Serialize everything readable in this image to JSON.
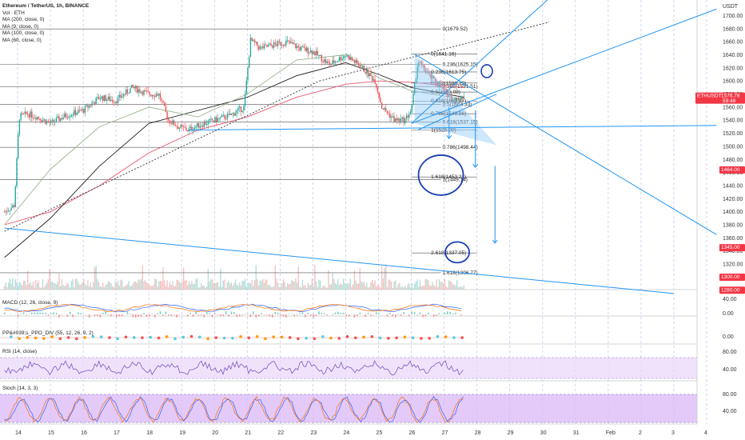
{
  "header": {
    "title": "Ethereum / TetherUS, 1h, BINANCE",
    "indicators": [
      "Vol · ETH",
      "MA (200, close, 0)",
      "MA (9, close, 0)",
      "MA (100, close, 0)",
      "MA (60, close, 0)"
    ]
  },
  "price_axis": {
    "unit": "USDT",
    "ticks": [
      1700,
      1680,
      1660,
      1640,
      1620,
      1600,
      1580,
      1560,
      1540,
      1520,
      1500,
      1480,
      1460,
      1440,
      1420,
      1400,
      1380,
      1360,
      1340,
      1320
    ]
  },
  "badges": [
    {
      "label": "ETHUSDT",
      "value": "1576.78",
      "sub": "59:48",
      "price": 1576.78,
      "color": "#f23645"
    },
    {
      "label": "",
      "value": "1464.00",
      "sub": "",
      "price": 1464,
      "color": "#f23645"
    },
    {
      "label": "",
      "value": "1345.00",
      "sub": "",
      "price": 1345,
      "color": "#f23645"
    },
    {
      "label": "",
      "value": "1300.00",
      "sub": "",
      "price": 1300,
      "color": "#f23645"
    },
    {
      "label": "",
      "value": "1280.00",
      "sub": "",
      "price": 1280,
      "color": "#f23645"
    }
  ],
  "fib_levels": [
    {
      "label": "0(1679.52)",
      "price": 1679.52,
      "x_from": 0.6,
      "x_to": 26.9,
      "label_day": 26.9
    },
    {
      "label": "0(1641.16)",
      "price": 1641.16,
      "x_from": 26.0,
      "x_to": 28.0,
      "label_day": 26.55
    },
    {
      "label": "0.236(1625.15)",
      "price": 1625.15,
      "x_from": 0.6,
      "x_to": 26.9,
      "label_day": 26.9
    },
    {
      "label": "0.236(1613.75)",
      "price": 1613.75,
      "x_from": 26.0,
      "x_to": 28.0,
      "label_day": 26.55
    },
    {
      "label": "0.382(1596.79)",
      "price": 1596.79,
      "x_from": 26.0,
      "x_to": 28.0,
      "label_day": 26.55
    },
    {
      "label": "0.382(1591.51)",
      "price": 1591.51,
      "x_from": 0.6,
      "x_to": 26.9,
      "label_day": 26.9
    },
    {
      "label": "0.5(1583.08)",
      "price": 1583.08,
      "x_from": 26.0,
      "x_to": 28.0,
      "label_day": 26.55
    },
    {
      "label": "0.618(1569.37)",
      "price": 1569.37,
      "x_from": 26.0,
      "x_to": 28.0,
      "label_day": 26.55
    },
    {
      "label": "0.5(1564.33)",
      "price": 1564.33,
      "x_from": 0.6,
      "x_to": 26.9,
      "label_day": 26.9
    },
    {
      "label": "0.786(1549.86)",
      "price": 1549.86,
      "x_from": 26.0,
      "x_to": 28.0,
      "label_day": 26.55
    },
    {
      "label": "0.618(1537.15)",
      "price": 1537.15,
      "x_from": 0.6,
      "x_to": 26.9,
      "label_day": 26.9
    },
    {
      "label": "1(1525.00)",
      "price": 1525.0,
      "x_from": 26.0,
      "x_to": 28.0,
      "label_day": 26.55
    },
    {
      "label": "0.786(1498.44)",
      "price": 1498.44,
      "x_from": 0.6,
      "x_to": 26.9,
      "label_day": 26.9
    },
    {
      "label": "1.618(1453.21)",
      "price": 1453.21,
      "x_from": 26.0,
      "x_to": 28.0,
      "label_day": 26.55
    },
    {
      "label": "1(1449.14)",
      "price": 1449.14,
      "x_from": 0.6,
      "x_to": 26.9,
      "label_day": 26.9
    },
    {
      "label": "2.618(1337.05)",
      "price": 1337.05,
      "x_from": 26.0,
      "x_to": 28.0,
      "label_day": 26.55
    },
    {
      "label": "1.618(1306.77)",
      "price": 1306.77,
      "x_from": 0.6,
      "x_to": 26.9,
      "label_day": 26.9
    }
  ],
  "panels": {
    "macd": {
      "label": "MACD (12, 26, close, 9)",
      "ticks": [
        "40.00",
        "0.00"
      ]
    },
    "ppo": {
      "label": "PP&#039;s_PPO_DIV (55, 12, 26, 9, 2)",
      "ticks": [
        "0.00"
      ]
    },
    "rsi": {
      "label": "RSI (14, close)",
      "ticks": [
        "80.00",
        "40.00"
      ]
    },
    "stoch": {
      "label": "Stoch (14, 3, 3)",
      "ticks": [
        "80.00",
        "40.00"
      ]
    }
  },
  "time_axis": {
    "labels": [
      {
        "text": "14",
        "day": 14
      },
      {
        "text": "15",
        "day": 15
      },
      {
        "text": "16",
        "day": 16
      },
      {
        "text": "17",
        "day": 17
      },
      {
        "text": "18",
        "day": 18
      },
      {
        "text": "19",
        "day": 19
      },
      {
        "text": "20",
        "day": 20
      },
      {
        "text": "21",
        "day": 21
      },
      {
        "text": "22",
        "day": 22
      },
      {
        "text": "23",
        "day": 23
      },
      {
        "text": "24",
        "day": 24
      },
      {
        "text": "25",
        "day": 25
      },
      {
        "text": "26",
        "day": 26
      },
      {
        "text": "27",
        "day": 27
      },
      {
        "text": "28",
        "day": 28
      },
      {
        "text": "29",
        "day": 29
      },
      {
        "text": "30",
        "day": 30
      },
      {
        "text": "31",
        "day": 31
      },
      {
        "text": "Feb",
        "day": 32
      },
      {
        "text": "2",
        "day": 33
      },
      {
        "text": "3",
        "day": 34
      },
      {
        "text": "4",
        "day": 35
      }
    ]
  },
  "chart_data": {
    "type": "line",
    "title": "Ethereum / TetherUS, 1h, BINANCE",
    "xlabel": "",
    "ylabel": "USDT",
    "ylim": [
      1310,
      1720
    ],
    "xlim_days": [
      13.6,
      35.3
    ],
    "grid": true,
    "series": [
      {
        "values_note": "",
        "x": [
          13.6,
          13.9,
          14.05,
          14.3,
          14.6,
          15.0,
          15.5,
          16.0,
          16.5,
          17.0,
          17.5,
          18.0,
          18.3,
          18.6,
          18.9,
          19.2,
          19.5,
          20.0,
          20.5,
          20.9,
          21.1,
          21.4,
          21.8,
          22.2,
          22.6,
          23.0,
          23.5,
          24.0,
          24.5,
          24.9,
          25.1,
          25.5,
          25.8,
          26.0,
          26.2,
          26.6,
          27.0,
          27.3,
          27.6
        ],
        "values": [
          1400,
          1410,
          1545,
          1550,
          1545,
          1535,
          1548,
          1555,
          1575,
          1570,
          1590,
          1580,
          1580,
          1540,
          1530,
          1525,
          1532,
          1540,
          1548,
          1560,
          1662,
          1650,
          1655,
          1660,
          1650,
          1645,
          1625,
          1640,
          1620,
          1600,
          1560,
          1540,
          1540,
          1555,
          1630,
          1605,
          1585,
          1570,
          1577
        ]
      },
      {
        "name": "MA (200, close, 0)",
        "x": [
          13.6,
          15,
          16.5,
          18,
          19.5,
          21,
          22.5,
          24,
          25,
          26,
          27.6
        ],
        "values": [
          1380,
          1400,
          1440,
          1490,
          1525,
          1545,
          1575,
          1595,
          1600,
          1598,
          1590
        ],
        "color": "#e8556f"
      },
      {
        "name": "MA (100, close, 0)",
        "x": [
          13.6,
          15,
          16.5,
          18,
          19.5,
          21,
          22.5,
          24,
          25,
          26,
          27.6
        ],
        "values": [
          1330,
          1390,
          1470,
          1535,
          1555,
          1575,
          1608,
          1628,
          1610,
          1590,
          1575
        ],
        "color": "#1f1f1f"
      },
      {
        "name": "MA (60, close, 0)",
        "x": [
          13.6,
          15,
          16.5,
          18,
          19.5,
          21,
          22.5,
          24,
          25,
          26,
          27.6
        ],
        "values": [
          1380,
          1465,
          1530,
          1560,
          1545,
          1580,
          1632,
          1640,
          1605,
          1585,
          1572
        ],
        "color": "#9bb58f"
      }
    ]
  },
  "colors": {
    "up": "#26a69a",
    "down": "#ef5350",
    "trendline": "#2196f3",
    "fib": "#555555",
    "band": "#e8d7fb",
    "badge": "#f23645"
  }
}
